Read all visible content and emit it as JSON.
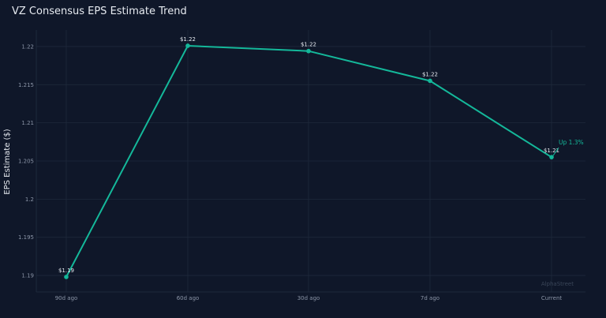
{
  "colors": {
    "background": "#0f1729",
    "plot_background": "#0f1729",
    "line": "#14b89a",
    "grid": "#1e293b",
    "text": "#e6eaf0",
    "tick": "#8b95a7",
    "watermark": "#3a4558"
  },
  "watermark": "AlphaStreet",
  "chart_data": {
    "type": "line",
    "title": "VZ Consensus EPS Estimate Trend",
    "xlabel": "",
    "ylabel": "EPS Estimate ($)",
    "categories": [
      "90d ago",
      "60d ago",
      "30d ago",
      "7d ago",
      "Current"
    ],
    "values": [
      1.1898,
      1.2201,
      1.2194,
      1.2155,
      1.2055
    ],
    "data_labels": [
      "$1.19",
      "$1.22",
      "$1.22",
      "$1.22",
      "$1.21"
    ],
    "yticks": [
      1.19,
      1.195,
      1.2,
      1.205,
      1.21,
      1.215,
      1.22
    ],
    "ytick_labels": [
      "1.19",
      "1.195",
      "1.2",
      "1.205",
      "1.21",
      "1.215",
      "1.22"
    ],
    "ylim": [
      1.1887,
      1.2221
    ],
    "grid": true,
    "legend": "none",
    "annotation": {
      "text": "Up 1.3%",
      "category": "Current"
    }
  }
}
